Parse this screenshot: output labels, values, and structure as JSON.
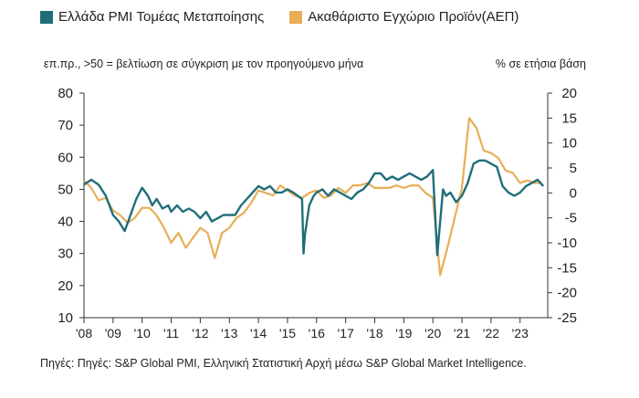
{
  "legend": {
    "pmi_label": "Ελλάδα PMI Τομέας Μεταποίησης",
    "gdp_label": "Ακαθάριστο Εγχώριο Προϊόν(ΑΕΠ)"
  },
  "subtitle_left": "επ.πρ., >50 = βελτίωση σε σύγκριση με τον προηγούμενο μήνα",
  "subtitle_right": "% σε ετήσια βάση",
  "source": "Πηγές: Πηγές: S&P Global PMI, Ελληνική Στατιστική Αρχή μέσω S&P Global Market Intelligence.",
  "colors": {
    "pmi": "#1f6e7a",
    "gdp": "#e8ae57",
    "axis": "#333333"
  },
  "chart_data": {
    "type": "line",
    "left_axis": {
      "ylim": [
        10,
        80
      ],
      "ticks": [
        10,
        20,
        30,
        40,
        50,
        60,
        70,
        80
      ]
    },
    "right_axis": {
      "ylim": [
        -25,
        20
      ],
      "ticks": [
        -25,
        -20,
        -15,
        -10,
        -5,
        0,
        5,
        10,
        15,
        20
      ]
    },
    "x_tick_labels": [
      "'08",
      "'09",
      "'10",
      "'11",
      "'12",
      "'13",
      "'14",
      "'15",
      "'16",
      "'17",
      "'18",
      "'19",
      "'20",
      "'21",
      "'22",
      "'23"
    ],
    "x_range": [
      2008.0,
      2023.95
    ],
    "series": [
      {
        "name": "Ελλάδα PMI Τομέας Μεταποίησης",
        "axis": "left",
        "x": [
          2008.0,
          2008.25,
          2008.5,
          2008.75,
          2009.0,
          2009.2,
          2009.4,
          2009.6,
          2009.8,
          2010.0,
          2010.2,
          2010.35,
          2010.5,
          2010.7,
          2010.9,
          2011.0,
          2011.2,
          2011.4,
          2011.6,
          2011.8,
          2012.0,
          2012.2,
          2012.4,
          2012.6,
          2012.8,
          2013.0,
          2013.2,
          2013.4,
          2013.6,
          2013.8,
          2014.0,
          2014.2,
          2014.4,
          2014.6,
          2014.8,
          2015.0,
          2015.2,
          2015.35,
          2015.5,
          2015.55,
          2015.6,
          2015.75,
          2015.9,
          2016.0,
          2016.2,
          2016.4,
          2016.6,
          2016.8,
          2017.0,
          2017.2,
          2017.4,
          2017.6,
          2017.8,
          2018.0,
          2018.2,
          2018.4,
          2018.6,
          2018.8,
          2019.0,
          2019.2,
          2019.4,
          2019.6,
          2019.8,
          2020.0,
          2020.15,
          2020.25,
          2020.35,
          2020.45,
          2020.6,
          2020.8,
          2021.0,
          2021.2,
          2021.4,
          2021.6,
          2021.8,
          2022.0,
          2022.2,
          2022.4,
          2022.6,
          2022.8,
          2023.0,
          2023.2,
          2023.4,
          2023.6,
          2023.8
        ],
        "values": [
          51.5,
          53,
          51.5,
          48,
          42,
          40,
          37,
          42,
          47,
          50.5,
          48,
          45,
          47,
          44,
          45,
          43,
          45,
          43,
          44,
          43,
          41,
          43,
          40,
          41,
          42,
          42,
          42,
          45,
          47,
          49,
          51,
          50,
          51,
          49,
          49,
          50,
          49,
          48,
          47,
          30,
          36,
          45,
          48,
          49,
          50,
          48,
          50,
          49,
          48,
          47,
          49,
          50,
          52,
          55,
          55,
          53,
          54,
          53,
          54,
          55,
          54,
          53,
          54,
          56,
          29.5,
          40,
          50,
          48,
          49,
          46,
          48,
          52,
          58,
          59,
          59,
          58,
          57,
          51,
          49,
          48,
          49,
          51,
          52,
          53,
          51
        ]
      },
      {
        "name": "Ακαθάριστο Εγχώριο Προϊόν(ΑΕΠ)",
        "axis": "right",
        "x": [
          2008.0,
          2008.25,
          2008.5,
          2008.75,
          2009.0,
          2009.25,
          2009.5,
          2009.75,
          2010.0,
          2010.25,
          2010.5,
          2010.75,
          2011.0,
          2011.25,
          2011.5,
          2011.75,
          2012.0,
          2012.25,
          2012.5,
          2012.75,
          2013.0,
          2013.25,
          2013.5,
          2013.75,
          2014.0,
          2014.25,
          2014.5,
          2014.75,
          2015.0,
          2015.25,
          2015.5,
          2015.75,
          2016.0,
          2016.25,
          2016.5,
          2016.75,
          2017.0,
          2017.25,
          2017.5,
          2017.75,
          2018.0,
          2018.25,
          2018.5,
          2018.75,
          2019.0,
          2019.25,
          2019.5,
          2019.75,
          2020.0,
          2020.25,
          2020.5,
          2020.75,
          2021.0,
          2021.25,
          2021.5,
          2021.75,
          2022.0,
          2022.25,
          2022.5,
          2022.75,
          2023.0,
          2023.25,
          2023.5,
          2023.75
        ],
        "values": [
          2.5,
          1,
          -1.5,
          -1,
          -3.5,
          -4.5,
          -6,
          -5,
          -3,
          -3,
          -4.5,
          -7,
          -10,
          -8,
          -11,
          -9,
          -7,
          -8,
          -13,
          -8,
          -7,
          -5,
          -4,
          -2,
          0.5,
          0,
          -0.5,
          1.5,
          0.5,
          -0.5,
          -1,
          0,
          0.5,
          -1,
          -0.5,
          1,
          0,
          1.5,
          1.5,
          2,
          1,
          1,
          1,
          1.5,
          1,
          1.5,
          1.5,
          0,
          -1,
          -16.5,
          -11,
          -5,
          1,
          15,
          13,
          8.5,
          8,
          7,
          4.5,
          4,
          2,
          2.5,
          2,
          2
        ]
      }
    ]
  }
}
